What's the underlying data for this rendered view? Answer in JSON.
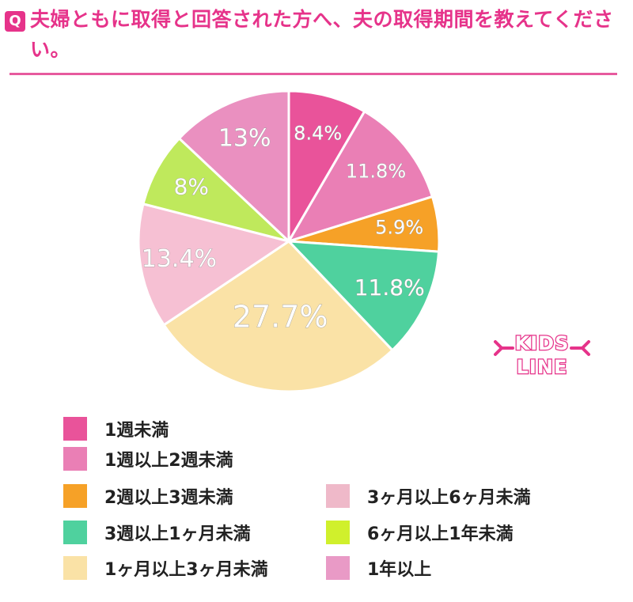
{
  "header": {
    "badge": "Q",
    "question": "夫婦ともに取得と回答された方へ、夫の取得期間を教えてください。"
  },
  "logo": {
    "line1": "KIDS",
    "line2": "LINE",
    "color": "#e6338a"
  },
  "chart_data": {
    "type": "pie",
    "title": "",
    "start_angle_deg": 0,
    "direction": "clockwise",
    "slices": [
      {
        "label": "1週未満",
        "value": 8.4,
        "display": "8.4%",
        "color": "#e9539a"
      },
      {
        "label": "1週以上2週未満",
        "value": 11.8,
        "display": "11.8%",
        "color": "#ea7fb5"
      },
      {
        "label": "2週以上3週未満",
        "value": 5.9,
        "display": "5.9%",
        "color": "#f6a127"
      },
      {
        "label": "3週以上1ヶ月未満",
        "value": 11.8,
        "display": "11.8%",
        "color": "#4fd19e"
      },
      {
        "label": "1ヶ月以上3ヶ月未満",
        "value": 27.7,
        "display": "27.7%",
        "color": "#fae2a6"
      },
      {
        "label": "3ヶ月以上6ヶ月未満",
        "value": 13.4,
        "display": "13.4%",
        "color": "#f6c0d3"
      },
      {
        "label": "6ヶ月以上1年未満",
        "value": 8,
        "display": "8%",
        "color": "#bfe95c"
      },
      {
        "label": "1年以上",
        "value": 13,
        "display": "13%",
        "color": "#ea90c0"
      }
    ],
    "legend_colors": {
      "3ヶ月以上6ヶ月未満": "#efb9c9",
      "6ヶ月以上1年未満": "#d0f02c",
      "1年以上": "#e99ac6"
    },
    "legend": {
      "placement": "bottom",
      "columns": [
        [
          "1週未満",
          "1週以上2週未満",
          "2週以上3週未満",
          "3週以上1ヶ月未満",
          "1ヶ月以上3ヶ月未満"
        ],
        [
          "3ヶ月以上6ヶ月未満",
          "6ヶ月以上1年未満",
          "1年以上"
        ]
      ]
    }
  }
}
